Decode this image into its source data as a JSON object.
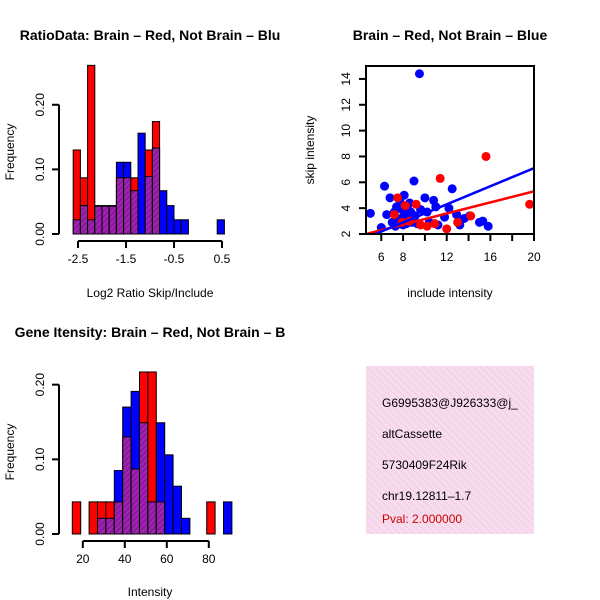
{
  "colors": {
    "red": "#ff0000",
    "blue": "#0000ff",
    "overlap": "#9e1fa8",
    "axis": "#000000",
    "panel_fill": "#f6d5ea",
    "pval": "#cc0000"
  },
  "chart_data": [
    {
      "id": "ratio_hist",
      "type": "bar",
      "title": "RatioData: Brain – Red, Not Brain – Blu",
      "xlabel": "Log2 Ratio Skip/Include",
      "ylabel": "Frequency",
      "xlim": [
        -2.75,
        0.75
      ],
      "ylim": [
        0,
        0.26
      ],
      "xticks": [
        -2.5,
        -1.5,
        -0.5,
        0.5
      ],
      "xtick_labels": [
        "-2.5",
        "-1.5",
        "-0.5",
        "0.5"
      ],
      "yticks": [
        0.0,
        0.1,
        0.2
      ],
      "ytick_labels": [
        "0.00",
        "0.10",
        "0.20"
      ],
      "bin_edges": [
        -2.6,
        -2.45,
        -2.3,
        -2.15,
        -2.0,
        -1.85,
        -1.7,
        -1.55,
        -1.4,
        -1.25,
        -1.1,
        -0.95,
        -0.8,
        -0.65,
        -0.5,
        -0.35,
        -0.2,
        -0.05,
        0.1,
        0.25,
        0.4,
        0.55
      ],
      "series": [
        {
          "name": "Brain",
          "color": "red",
          "values": [
            0.13,
            0.087,
            0.261,
            0.043,
            0.043,
            0.043,
            0.087,
            0.087,
            0.087,
            0.0,
            0.13,
            0.174,
            0.0,
            0.0,
            0.0,
            0.0,
            0.0,
            0.0,
            0.0,
            0.0,
            0.0
          ]
        },
        {
          "name": "Not Brain",
          "color": "blue",
          "values": [
            0.022,
            0.044,
            0.022,
            0.044,
            0.044,
            0.044,
            0.111,
            0.111,
            0.067,
            0.156,
            0.089,
            0.133,
            0.067,
            0.044,
            0.022,
            0.022,
            0.0,
            0.0,
            0.0,
            0.0,
            0.022
          ]
        }
      ]
    },
    {
      "id": "scatter",
      "type": "scatter",
      "title": "Brain – Red, Not Brain – Blue",
      "xlabel": "include intensity",
      "ylabel": "skip intensity",
      "xlim": [
        4.6,
        20.0
      ],
      "ylim": [
        2.0,
        15.0
      ],
      "xticks": [
        6,
        8,
        10,
        12,
        14,
        16,
        18,
        20
      ],
      "xtick_labels": [
        "6",
        "8",
        "",
        "12",
        "",
        "16",
        "",
        "20"
      ],
      "yticks": [
        2,
        4,
        6,
        8,
        10,
        12,
        14
      ],
      "ytick_labels": [
        "2",
        "4",
        "6",
        "8",
        "10",
        "12",
        "14"
      ],
      "series": [
        {
          "name": "Brain",
          "color": "red",
          "x": [
            7.2,
            7.5,
            8.2,
            8.6,
            9.2,
            10.2,
            10.9,
            11.4,
            12.0,
            13.0,
            14.2,
            15.6,
            19.6,
            7.9,
            9.6
          ],
          "y": [
            3.5,
            4.8,
            4.2,
            3.0,
            4.3,
            2.6,
            2.8,
            6.3,
            2.4,
            2.9,
            3.4,
            8.0,
            4.3,
            2.9,
            2.7
          ],
          "fit": {
            "x": [
              4.6,
              20.0
            ],
            "y": [
              2.0,
              5.3
            ]
          }
        },
        {
          "name": "Not Brain",
          "color": "blue",
          "x": [
            5.0,
            6.0,
            6.3,
            6.5,
            6.8,
            7.0,
            7.2,
            7.3,
            7.4,
            7.5,
            7.6,
            7.7,
            7.8,
            7.9,
            8.0,
            8.0,
            8.1,
            8.2,
            8.3,
            8.4,
            8.5,
            8.6,
            8.7,
            8.8,
            9.0,
            9.1,
            9.3,
            9.5,
            9.6,
            10.0,
            10.2,
            10.4,
            10.8,
            11.0,
            11.2,
            11.8,
            12.2,
            12.5,
            12.9,
            13.2,
            13.6,
            14.1,
            15.0,
            15.3,
            15.8
          ],
          "y": [
            3.6,
            2.5,
            5.7,
            3.5,
            4.8,
            2.9,
            3.7,
            2.6,
            4.1,
            3.2,
            2.8,
            4.6,
            3.0,
            3.9,
            2.7,
            3.3,
            5.0,
            3.6,
            2.8,
            4.0,
            3.1,
            4.4,
            3.7,
            2.9,
            6.1,
            3.4,
            2.8,
            14.4,
            3.9,
            4.8,
            3.7,
            2.9,
            4.6,
            4.1,
            2.7,
            3.3,
            4.0,
            5.5,
            3.5,
            2.7,
            3.2,
            3.4,
            2.9,
            3.0,
            2.6
          ],
          "fit": {
            "x": [
              4.6,
              20.0
            ],
            "y": [
              1.7,
              7.1
            ]
          }
        }
      ]
    },
    {
      "id": "intensity_hist",
      "type": "bar",
      "title": "Gene Itensity: Brain – Red, Not Brain – B",
      "xlabel": "Intensity",
      "ylabel": "Frequency",
      "xlim": [
        12,
        92
      ],
      "ylim": [
        0,
        0.225
      ],
      "xticks": [
        20,
        40,
        60,
        80
      ],
      "xtick_labels": [
        "20",
        "40",
        "60",
        "80"
      ],
      "yticks": [
        0.0,
        0.1,
        0.2
      ],
      "ytick_labels": [
        "0.00",
        "0.10",
        "0.20"
      ],
      "bin_edges": [
        15,
        19,
        23,
        27,
        31,
        35,
        39,
        43,
        47,
        51,
        55,
        59,
        63,
        67,
        71,
        75,
        79,
        83,
        87,
        91
      ],
      "series": [
        {
          "name": "Brain",
          "color": "red",
          "values": [
            0.043,
            0.0,
            0.043,
            0.043,
            0.043,
            0.043,
            0.13,
            0.087,
            0.217,
            0.217,
            0.043,
            0.0,
            0.0,
            0.0,
            0.0,
            0.0,
            0.043,
            0.0,
            0.0
          ]
        },
        {
          "name": "Not Brain",
          "color": "blue",
          "values": [
            0.0,
            0.0,
            0.0,
            0.021,
            0.021,
            0.085,
            0.17,
            0.191,
            0.149,
            0.043,
            0.149,
            0.106,
            0.064,
            0.021,
            0.0,
            0.0,
            0.0,
            0.0,
            0.043
          ]
        }
      ]
    }
  ],
  "info_panel": {
    "lines": [
      "G6995383@J926333@j_",
      "altCassette",
      "5730409F24Rik",
      "chr19.12811–1.7"
    ],
    "pval": "Pval: 2.000000"
  }
}
